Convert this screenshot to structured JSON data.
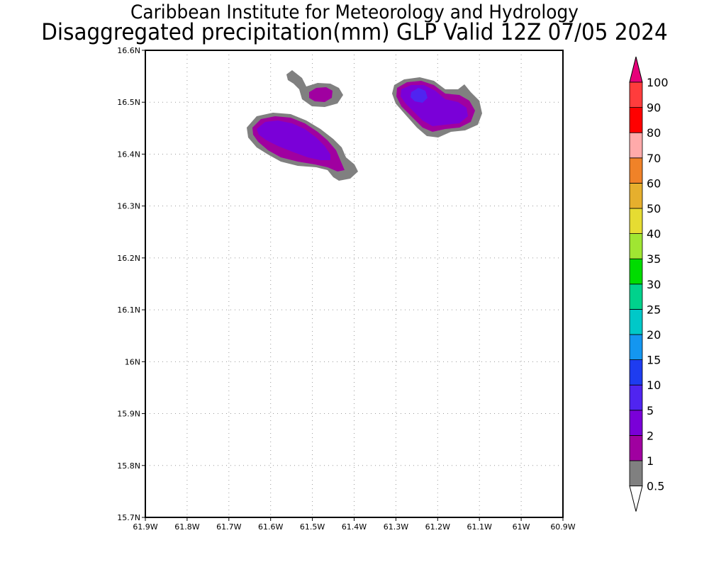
{
  "title": {
    "line1": "Caribbean Institute for Meteorology and Hydrology",
    "line2": "Disaggregated precipitation(mm) GLP Valid 12Z 07/05 2024"
  },
  "map": {
    "lon_labels": [
      "61.9W",
      "61.8W",
      "61.7W",
      "61.6W",
      "61.5W",
      "61.4W",
      "61.3W",
      "61.2W",
      "61.1W",
      "61W",
      "60.9W"
    ],
    "lat_labels": [
      "16.6N",
      "16.5N",
      "16.4N",
      "16.3N",
      "16.2N",
      "16.1N",
      "16N",
      "15.9N",
      "15.8N",
      "15.7N"
    ],
    "lon_range": [
      -61.9,
      -60.9
    ],
    "lat_range": [
      15.7,
      16.6
    ]
  },
  "colorbar": {
    "units": "mm",
    "levels": [
      "0.5",
      "1",
      "2",
      "5",
      "10",
      "15",
      "20",
      "25",
      "30",
      "35",
      "40",
      "50",
      "60",
      "70",
      "80",
      "90",
      "100"
    ],
    "colors": {
      "lt_0_5": "#ffffff",
      "0_5_1": "#808080",
      "1_2": "#a000a0",
      "2_5": "#7a00d8",
      "5_10": "#5024f0",
      "10_15": "#1e3cf0",
      "15_20": "#1496f0",
      "20_25": "#00c8c8",
      "25_30": "#00d28c",
      "30_35": "#00dc00",
      "35_40": "#a0e632",
      "40_50": "#e6dc32",
      "50_60": "#e6af2d",
      "60_70": "#f08228",
      "70_80": "#ffaaaa",
      "80_90": "#ff0000",
      "90_100": "#ff3c3c",
      "gt_100": "#e6007a"
    }
  }
}
